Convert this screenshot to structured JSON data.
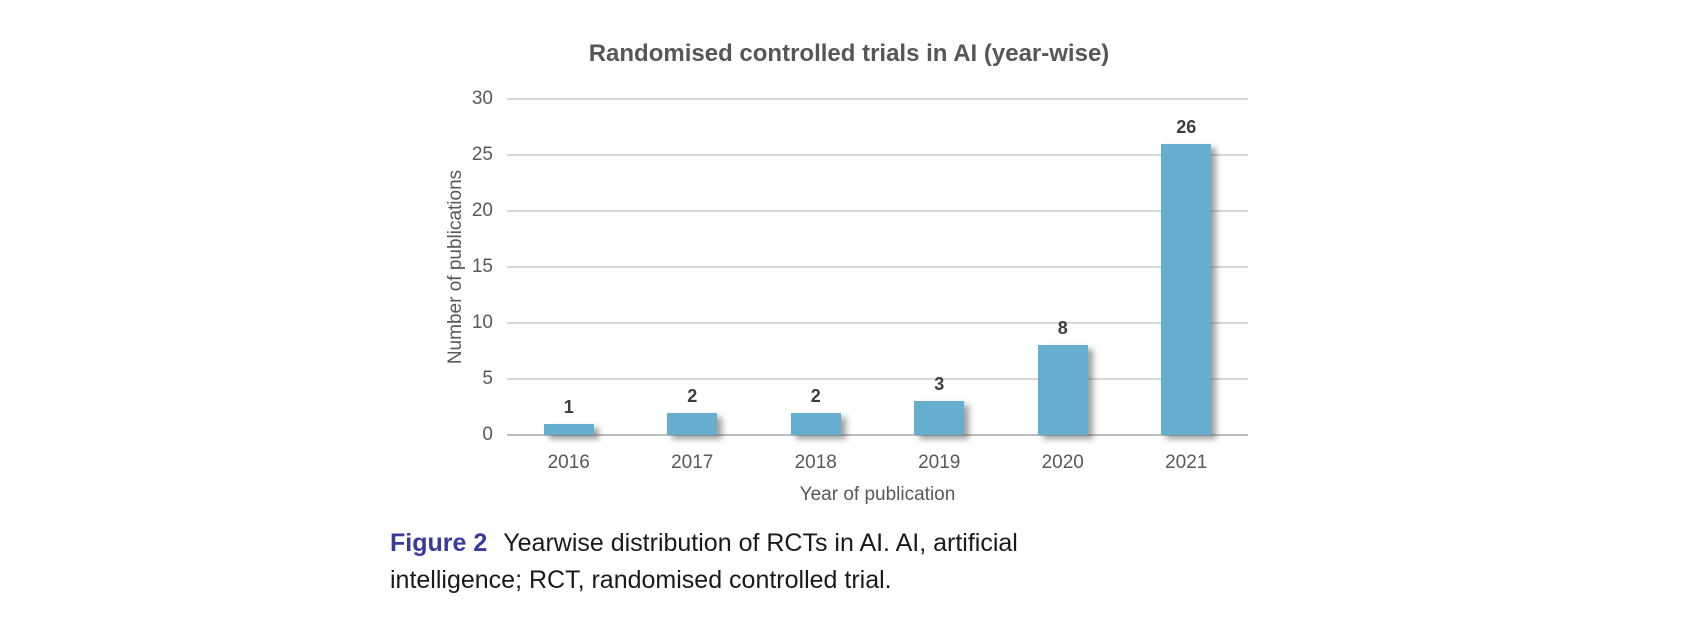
{
  "chart_data": {
    "type": "bar",
    "title": "Randomised controlled trials in AI (year-wise)",
    "categories": [
      "2016",
      "2017",
      "2018",
      "2019",
      "2020",
      "2021"
    ],
    "values": [
      1,
      2,
      2,
      3,
      8,
      26
    ],
    "xlabel": "Year of publication",
    "ylabel": "Number of publications",
    "ylim": [
      0,
      30
    ],
    "yticks": [
      0,
      5,
      10,
      15,
      20,
      25,
      30
    ],
    "grid": true,
    "legend": "none",
    "data_labels": [
      1,
      2,
      2,
      3,
      8,
      26
    ],
    "bar_color": "#65aecf"
  },
  "caption": {
    "figure_label": "Figure 2",
    "text": "Yearwise distribution of RCTs in AI. AI, artificial intelligence; RCT, randomised controlled trial.",
    "label_color": "#39399e"
  },
  "colors": {
    "title_text": "#575757",
    "axis_text": "#595959",
    "gridline": "#d8d8d8",
    "zero_line": "#bdbdbd",
    "data_label_text": "#3d3d3d",
    "background": "#ffffff"
  }
}
